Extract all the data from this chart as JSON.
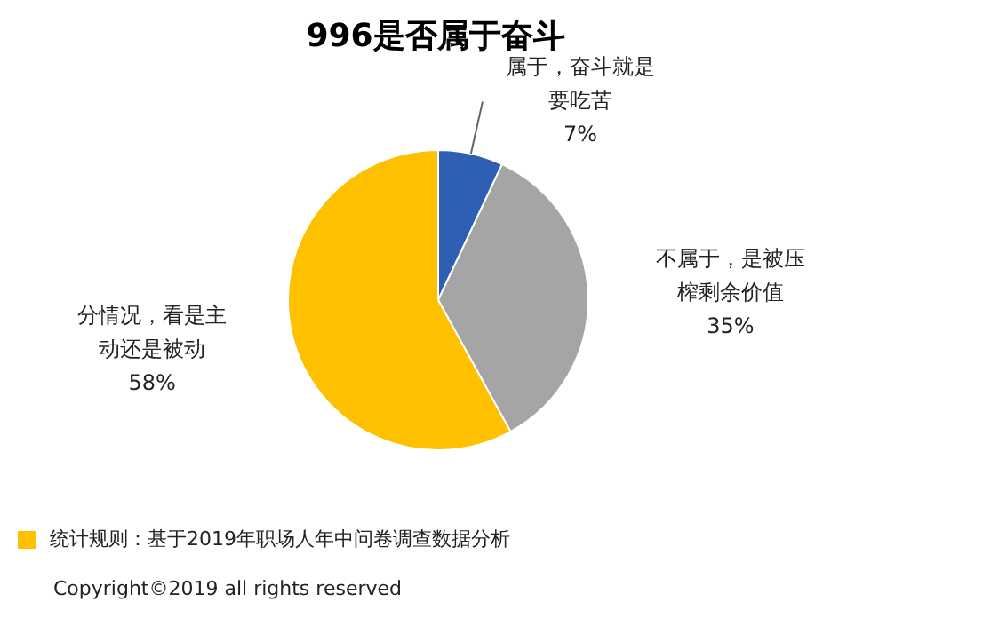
{
  "chart_data": {
    "type": "pie",
    "title": "996是否属于奋斗",
    "categories": [
      "属于，奋斗就是要吃苦",
      "不属于，是被压榨剩余价值",
      "分情况，看是主动还是被动"
    ],
    "values": [
      7,
      35,
      58
    ],
    "colors": [
      "#2f5fb3",
      "#a5a5a5",
      "#ffc000"
    ],
    "value_labels": [
      "7%",
      "35%",
      "58%"
    ],
    "legend": false,
    "annotations": [
      "统计规则：基于2019年职场人年中问卷调查数据分析",
      "Copyright©2019 all rights reserved"
    ]
  }
}
